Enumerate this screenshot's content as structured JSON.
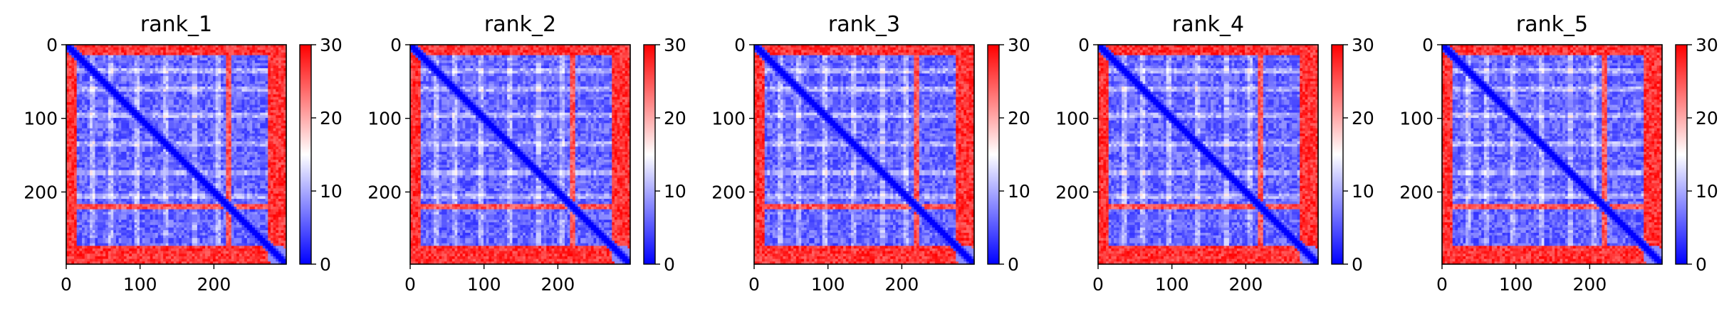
{
  "chart_data": [
    {
      "type": "heatmap",
      "title": "rank_1",
      "xlim": [
        0,
        298
      ],
      "ylim": [
        298,
        0
      ],
      "x_ticks": [
        "0",
        "100",
        "200"
      ],
      "y_ticks": [
        "0",
        "100",
        "200"
      ],
      "colorbar": {
        "min": 0,
        "max": 30,
        "ticks": [
          "0",
          "10",
          "20",
          "30"
        ],
        "colormap": "bwr"
      },
      "blue_square_end": 272,
      "disordered_band": 220
    },
    {
      "type": "heatmap",
      "title": "rank_2",
      "xlim": [
        0,
        298
      ],
      "ylim": [
        298,
        0
      ],
      "x_ticks": [
        "0",
        "100",
        "200"
      ],
      "y_ticks": [
        "0",
        "100",
        "200"
      ],
      "colorbar": {
        "min": 0,
        "max": 30,
        "ticks": [
          "0",
          "10",
          "20",
          "30"
        ],
        "colormap": "bwr"
      },
      "blue_square_end": 272,
      "disordered_band": 220
    },
    {
      "type": "heatmap",
      "title": "rank_3",
      "xlim": [
        0,
        298
      ],
      "ylim": [
        298,
        0
      ],
      "x_ticks": [
        "0",
        "100",
        "200"
      ],
      "y_ticks": [
        "0",
        "100",
        "200"
      ],
      "colorbar": {
        "min": 0,
        "max": 30,
        "ticks": [
          "0",
          "10",
          "20",
          "30"
        ],
        "colormap": "bwr"
      },
      "blue_square_end": 272,
      "disordered_band": 220
    },
    {
      "type": "heatmap",
      "title": "rank_4",
      "xlim": [
        0,
        298
      ],
      "ylim": [
        298,
        0
      ],
      "x_ticks": [
        "0",
        "100",
        "200"
      ],
      "y_ticks": [
        "0",
        "100",
        "200"
      ],
      "colorbar": {
        "min": 0,
        "max": 30,
        "ticks": [
          "0",
          "10",
          "20",
          "30"
        ],
        "colormap": "bwr"
      },
      "blue_square_end": 272,
      "disordered_band": 220
    },
    {
      "type": "heatmap",
      "title": "rank_5",
      "xlim": [
        0,
        298
      ],
      "ylim": [
        298,
        0
      ],
      "x_ticks": [
        "0",
        "100",
        "200"
      ],
      "y_ticks": [
        "0",
        "100",
        "200"
      ],
      "colorbar": {
        "min": 0,
        "max": 30,
        "ticks": [
          "0",
          "10",
          "20",
          "30"
        ],
        "colormap": "bwr"
      },
      "blue_square_end": 272,
      "disordered_band": 220
    }
  ],
  "colors": {
    "low": "#0000ff",
    "mid": "#ffffff",
    "high": "#ff0000"
  }
}
